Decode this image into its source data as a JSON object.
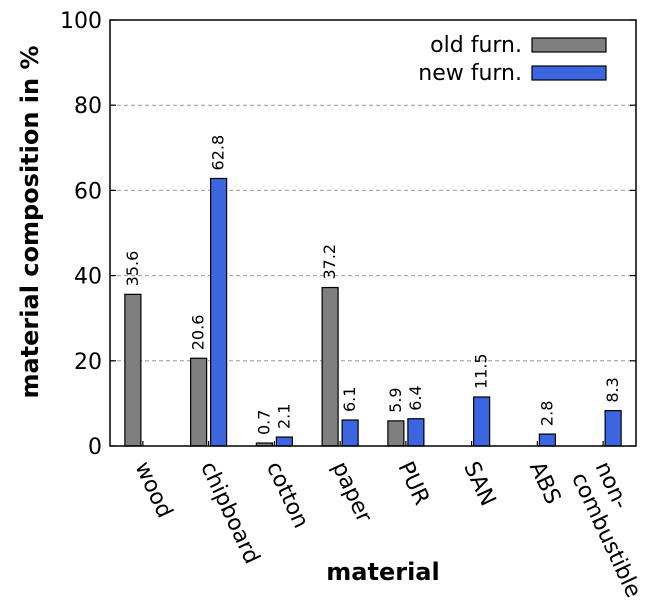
{
  "chart_data": {
    "type": "bar",
    "xlabel": "material",
    "ylabel": "material composition in %",
    "ylim": [
      0,
      100
    ],
    "yticks": [
      0,
      20,
      40,
      60,
      80,
      100
    ],
    "grid": "horizontal dashed",
    "legend_position": "top-right",
    "categories": [
      "wood",
      "chipboard",
      "cotton",
      "paper",
      "PUR",
      "SAN",
      "ABS",
      "non-\ncombustible"
    ],
    "series": [
      {
        "name": "old furn.",
        "color": "#7f7f7f",
        "values": [
          35.6,
          20.6,
          0.7,
          37.2,
          5.9,
          null,
          null,
          null
        ],
        "labels": [
          "35.6",
          "20.6",
          "0.7",
          "37.2",
          "5.9",
          "",
          "",
          ""
        ]
      },
      {
        "name": "new furn.",
        "color": "#3b66e0",
        "values": [
          null,
          62.8,
          2.1,
          6.1,
          6.4,
          11.5,
          2.8,
          8.3
        ],
        "labels": [
          "",
          "62.8",
          "2.1",
          "6.1",
          "6.4",
          "11.5",
          "2.8",
          "8.3"
        ]
      }
    ]
  }
}
